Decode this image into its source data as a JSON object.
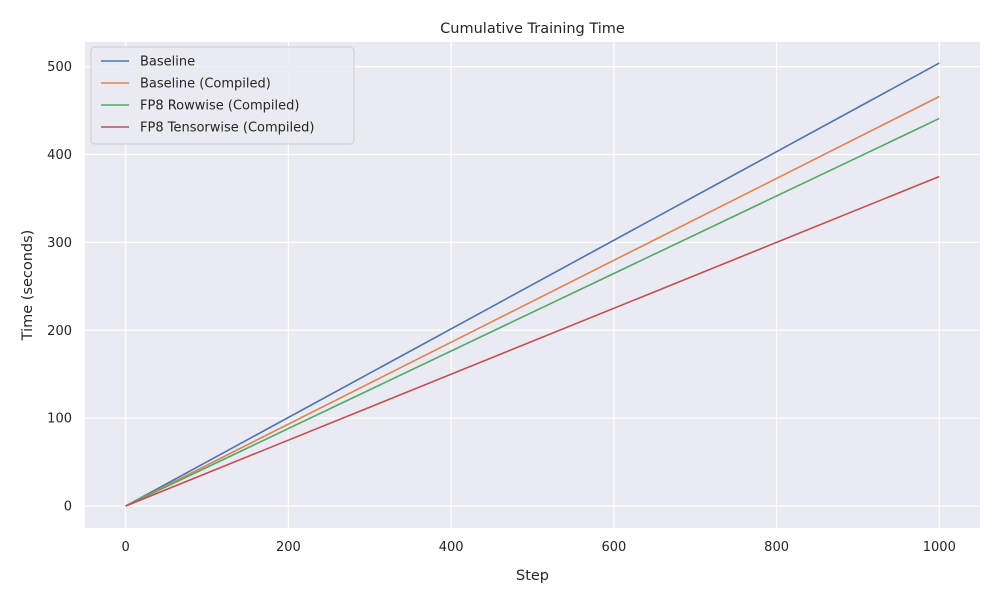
{
  "chart_data": {
    "type": "line",
    "title": "Cumulative Training Time",
    "xlabel": "Step",
    "ylabel": "Time (seconds)",
    "xlim": [
      -50,
      1050
    ],
    "ylim": [
      -25,
      528
    ],
    "xticks": [
      0,
      200,
      400,
      600,
      800,
      1000
    ],
    "yticks": [
      0,
      100,
      200,
      300,
      400,
      500
    ],
    "grid": true,
    "legend_position": "top-left",
    "series": [
      {
        "name": "Baseline",
        "color": "#4c72b0",
        "x": [
          0,
          1000
        ],
        "y": [
          0,
          504
        ]
      },
      {
        "name": "Baseline (Compiled)",
        "color": "#dd8452",
        "x": [
          0,
          1000
        ],
        "y": [
          0,
          466
        ]
      },
      {
        "name": "FP8 Rowwise (Compiled)",
        "color": "#55a868",
        "x": [
          0,
          1000
        ],
        "y": [
          0,
          441
        ]
      },
      {
        "name": "FP8 Tensorwise (Compiled)",
        "color": "#c44e52",
        "x": [
          0,
          1000
        ],
        "y": [
          0,
          375
        ]
      }
    ]
  }
}
